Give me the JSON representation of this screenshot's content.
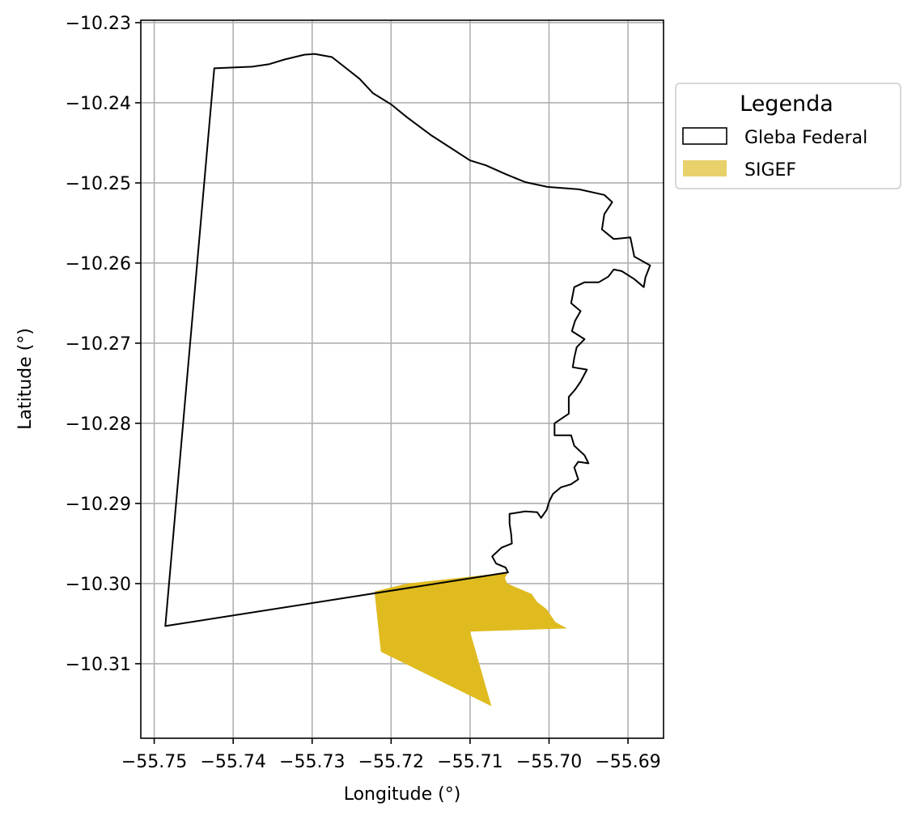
{
  "chart_data": {
    "type": "map",
    "xlabel": "Longitude (°)",
    "ylabel": "Latitude (°)",
    "xlim": [
      -55.7517,
      -55.6855
    ],
    "ylim": [
      -10.3193,
      -10.2297
    ],
    "grid": true,
    "x_ticks": [
      -55.75,
      -55.74,
      -55.73,
      -55.72,
      -55.71,
      -55.7,
      -55.69
    ],
    "x_tick_labels": [
      "−55.75",
      "−55.74",
      "−55.73",
      "−55.72",
      "−55.71",
      "−55.70",
      "−55.69"
    ],
    "y_ticks": [
      -10.23,
      -10.24,
      -10.25,
      -10.26,
      -10.27,
      -10.28,
      -10.29,
      -10.3,
      -10.31
    ],
    "y_tick_labels": [
      "−10.23",
      "−10.24",
      "−10.25",
      "−10.26",
      "−10.27",
      "−10.28",
      "−10.29",
      "−10.30",
      "−10.31"
    ],
    "legend": {
      "title": "Legenda",
      "placement": "outside-right-top",
      "entries": [
        {
          "label": "Gleba Federal",
          "style": "outline",
          "color": "#000000"
        },
        {
          "label": "SIGEF",
          "style": "fill",
          "color": "#e8d06b"
        }
      ]
    },
    "layers": [
      {
        "name": "SIGEF",
        "style": "fill",
        "color": "#dfbb1f",
        "coordinates": [
          [
            -55.7052,
            -10.2986
          ],
          [
            -55.706,
            -10.2987
          ],
          [
            -55.718,
            -10.3
          ],
          [
            -55.7221,
            -10.301
          ],
          [
            -55.7213,
            -10.3085
          ],
          [
            -55.7073,
            -10.3153
          ],
          [
            -55.71,
            -10.306
          ],
          [
            -55.6977,
            -10.3056
          ],
          [
            -55.6992,
            -10.3048
          ],
          [
            -55.7003,
            -10.3032
          ],
          [
            -55.7015,
            -10.3023
          ],
          [
            -55.7022,
            -10.3013
          ],
          [
            -55.7053,
            -10.3
          ],
          [
            -55.7056,
            -10.2993
          ],
          [
            -55.7052,
            -10.2986
          ]
        ]
      },
      {
        "name": "Gleba Federal",
        "style": "outline",
        "color": "#000000",
        "coordinates": [
          [
            -55.7486,
            -10.3053
          ],
          [
            -55.7424,
            -10.2357
          ],
          [
            -55.7376,
            -10.2355
          ],
          [
            -55.7355,
            -10.2352
          ],
          [
            -55.7335,
            -10.2346
          ],
          [
            -55.731,
            -10.234
          ],
          [
            -55.7297,
            -10.2339
          ],
          [
            -55.7275,
            -10.2343
          ],
          [
            -55.7262,
            -10.2353
          ],
          [
            -55.724,
            -10.237
          ],
          [
            -55.7223,
            -10.2388
          ],
          [
            -55.72,
            -10.2402
          ],
          [
            -55.718,
            -10.2418
          ],
          [
            -55.715,
            -10.244
          ],
          [
            -55.7125,
            -10.2456
          ],
          [
            -55.71,
            -10.2472
          ],
          [
            -55.708,
            -10.2478
          ],
          [
            -55.7055,
            -10.2489
          ],
          [
            -55.703,
            -10.2499
          ],
          [
            -55.7002,
            -10.2505
          ],
          [
            -55.6962,
            -10.2508
          ],
          [
            -55.693,
            -10.2515
          ],
          [
            -55.692,
            -10.2524
          ],
          [
            -55.693,
            -10.2539
          ],
          [
            -55.6933,
            -10.2558
          ],
          [
            -55.6918,
            -10.257
          ],
          [
            -55.6897,
            -10.2568
          ],
          [
            -55.6892,
            -10.2592
          ],
          [
            -55.6872,
            -10.2603
          ],
          [
            -55.6878,
            -10.2618
          ],
          [
            -55.688,
            -10.263
          ],
          [
            -55.6892,
            -10.262
          ],
          [
            -55.6908,
            -10.261
          ],
          [
            -55.6918,
            -10.2608
          ],
          [
            -55.6925,
            -10.2617
          ],
          [
            -55.6937,
            -10.2624
          ],
          [
            -55.6955,
            -10.2624
          ],
          [
            -55.6968,
            -10.263
          ],
          [
            -55.6972,
            -10.265
          ],
          [
            -55.696,
            -10.266
          ],
          [
            -55.6967,
            -10.2672
          ],
          [
            -55.6971,
            -10.2685
          ],
          [
            -55.6955,
            -10.2695
          ],
          [
            -55.6965,
            -10.2705
          ],
          [
            -55.6968,
            -10.2718
          ],
          [
            -55.697,
            -10.273
          ],
          [
            -55.6952,
            -10.2733
          ],
          [
            -55.696,
            -10.2748
          ],
          [
            -55.6967,
            -10.2758
          ],
          [
            -55.6975,
            -10.2767
          ],
          [
            -55.6975,
            -10.2788
          ],
          [
            -55.6993,
            -10.28
          ],
          [
            -55.6993,
            -10.2815
          ],
          [
            -55.6972,
            -10.2815
          ],
          [
            -55.6968,
            -10.2828
          ],
          [
            -55.6955,
            -10.284
          ],
          [
            -55.695,
            -10.285
          ],
          [
            -55.6963,
            -10.2848
          ],
          [
            -55.6968,
            -10.2855
          ],
          [
            -55.6963,
            -10.287
          ],
          [
            -55.6972,
            -10.2876
          ],
          [
            -55.6985,
            -10.288
          ],
          [
            -55.6995,
            -10.2888
          ],
          [
            -55.7,
            -10.2898
          ],
          [
            -55.7003,
            -10.2908
          ],
          [
            -55.701,
            -10.2918
          ],
          [
            -55.7015,
            -10.2911
          ],
          [
            -55.703,
            -10.291
          ],
          [
            -55.705,
            -10.2913
          ],
          [
            -55.705,
            -10.2925
          ],
          [
            -55.7048,
            -10.2938
          ],
          [
            -55.7047,
            -10.295
          ],
          [
            -55.706,
            -10.2955
          ],
          [
            -55.7072,
            -10.2966
          ],
          [
            -55.7067,
            -10.2975
          ],
          [
            -55.7055,
            -10.298
          ],
          [
            -55.7052,
            -10.2986
          ],
          [
            -55.7486,
            -10.3053
          ]
        ]
      }
    ]
  }
}
